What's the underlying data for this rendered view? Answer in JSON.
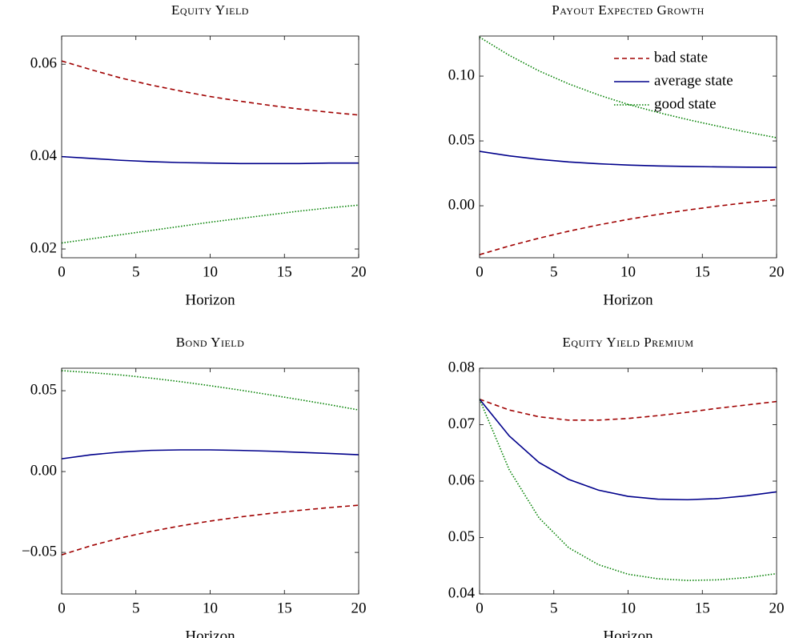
{
  "chart_data": [
    {
      "type": "line",
      "title": "Equity Yield",
      "xlabel": "Horizon",
      "x": [
        0,
        2,
        4,
        6,
        8,
        10,
        12,
        14,
        16,
        18,
        20
      ],
      "series": [
        {
          "color": "#a00000",
          "dash": "dashed",
          "values": [
            0.0607,
            0.0588,
            0.057,
            0.0555,
            0.0542,
            0.053,
            0.052,
            0.0511,
            0.0503,
            0.0496,
            0.049
          ]
        },
        {
          "color": "#00008b",
          "dash": "solid",
          "values": [
            0.04,
            0.0396,
            0.0392,
            0.0389,
            0.0387,
            0.0386,
            0.0385,
            0.0385,
            0.0385,
            0.0386,
            0.0386
          ]
        },
        {
          "color": "#008000",
          "dash": "dotted",
          "values": [
            0.0213,
            0.0222,
            0.0231,
            0.024,
            0.0249,
            0.0258,
            0.0266,
            0.0274,
            0.0282,
            0.0289,
            0.0295
          ]
        }
      ],
      "xlim": [
        0,
        20
      ],
      "xticks": [
        0,
        5,
        10,
        15,
        20
      ],
      "ylim": [
        0.0181,
        0.0661
      ],
      "yticks": [
        {
          "value": 0.02,
          "label": "0.02"
        },
        {
          "value": 0.04,
          "label": "0.04"
        },
        {
          "value": 0.06,
          "label": "0.06"
        }
      ]
    },
    {
      "type": "line",
      "title": "Payout Expected Growth",
      "xlabel": "Horizon",
      "legend": "upper right",
      "x": [
        0,
        2,
        4,
        6,
        8,
        10,
        12,
        14,
        16,
        18,
        20
      ],
      "series": [
        {
          "name": "bad state",
          "color": "#a00000",
          "dash": "dashed",
          "values": [
            -0.0377,
            -0.031,
            -0.025,
            -0.0196,
            -0.0148,
            -0.0105,
            -0.0067,
            -0.0033,
            -0.0003,
            0.0024,
            0.0048
          ]
        },
        {
          "name": "average state",
          "color": "#00008b",
          "dash": "solid",
          "values": [
            0.042,
            0.0385,
            0.0358,
            0.0338,
            0.0324,
            0.0314,
            0.0307,
            0.0303,
            0.03,
            0.0298,
            0.0296
          ]
        },
        {
          "name": "good state",
          "color": "#008000",
          "dash": "dotted",
          "values": [
            0.13,
            0.116,
            0.104,
            0.094,
            0.0855,
            0.0782,
            0.072,
            0.0665,
            0.0615,
            0.0568,
            0.0525
          ]
        }
      ],
      "xlim": [
        0,
        20
      ],
      "xticks": [
        0,
        5,
        10,
        15,
        20
      ],
      "ylim": [
        -0.0401,
        0.1309
      ],
      "yticks": [
        {
          "value": 0,
          "label": "0.00"
        },
        {
          "value": 0.05,
          "label": "0.05"
        },
        {
          "value": 0.1,
          "label": "0.10"
        }
      ]
    },
    {
      "type": "line",
      "title": "Bond Yield",
      "xlabel": "Horizon",
      "x": [
        0,
        2,
        4,
        6,
        8,
        10,
        12,
        14,
        16,
        18,
        20
      ],
      "series": [
        {
          "color": "#a00000",
          "dash": "dashed",
          "values": [
            -0.0515,
            -0.0458,
            -0.041,
            -0.037,
            -0.0336,
            -0.0306,
            -0.0281,
            -0.0259,
            -0.024,
            -0.0223,
            -0.0208
          ]
        },
        {
          "color": "#00008b",
          "dash": "solid",
          "values": [
            0.0079,
            0.0104,
            0.0121,
            0.0131,
            0.0134,
            0.0134,
            0.0131,
            0.0126,
            0.0119,
            0.0112,
            0.0104
          ]
        },
        {
          "color": "#008000",
          "dash": "dotted",
          "values": [
            0.0624,
            0.0612,
            0.0597,
            0.0578,
            0.0556,
            0.0531,
            0.0504,
            0.0475,
            0.0445,
            0.0414,
            0.0381
          ]
        }
      ],
      "xlim": [
        0,
        20
      ],
      "xticks": [
        0,
        5,
        10,
        15,
        20
      ],
      "ylim": [
        -0.0757,
        0.0639
      ],
      "yticks": [
        {
          "value": -0.05,
          "label": "−0.05"
        },
        {
          "value": 0,
          "label": "0.00"
        },
        {
          "value": 0.05,
          "label": "0.05"
        }
      ]
    },
    {
      "type": "line",
      "title": "Equity Yield Premium",
      "xlabel": "Horizon",
      "x": [
        0,
        2,
        4,
        6,
        8,
        10,
        12,
        14,
        16,
        18,
        20
      ],
      "series": [
        {
          "color": "#a00000",
          "dash": "dashed",
          "values": [
            0.0745,
            0.0726,
            0.0714,
            0.0708,
            0.0708,
            0.0711,
            0.0716,
            0.0722,
            0.0729,
            0.0735,
            0.0741
          ]
        },
        {
          "color": "#00008b",
          "dash": "solid",
          "values": [
            0.0745,
            0.068,
            0.0633,
            0.0603,
            0.0584,
            0.0573,
            0.0568,
            0.0567,
            0.0569,
            0.0574,
            0.0581
          ]
        },
        {
          "color": "#008000",
          "dash": "dotted",
          "values": [
            0.0745,
            0.062,
            0.0535,
            0.0482,
            0.0452,
            0.0435,
            0.0427,
            0.0424,
            0.0425,
            0.0429,
            0.0436
          ]
        }
      ],
      "xlim": [
        0,
        20
      ],
      "xticks": [
        0,
        5,
        10,
        15,
        20
      ],
      "ylim": [
        0.04,
        0.08
      ],
      "yticks": [
        {
          "value": 0.04,
          "label": "0.04"
        },
        {
          "value": 0.05,
          "label": "0.05"
        },
        {
          "value": 0.06,
          "label": "0.06"
        },
        {
          "value": 0.07,
          "label": "0.07"
        },
        {
          "value": 0.08,
          "label": "0.08"
        }
      ]
    }
  ]
}
